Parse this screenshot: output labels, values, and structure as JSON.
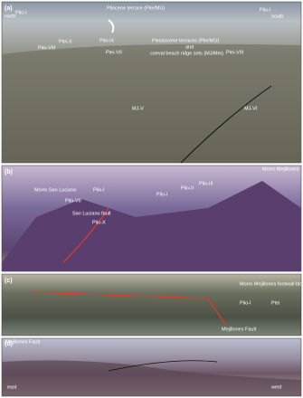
{
  "panels": [
    {
      "label": "(a)",
      "annotations": [
        "north",
        "south",
        "Pliocene terrace (Plei/MU)",
        "Plio-I",
        "Plio-I",
        "Plei-X",
        "Plei-VIII",
        "Plei-IX",
        "Plei-VII",
        "Pleistocene terraces (Plei/MU)",
        "and",
        "coeval beach ridge sets (MJ/Mm)",
        "Plei-VIII",
        "MJ-V",
        "MJ-VI"
      ]
    },
    {
      "label": "(b)",
      "annotations": [
        "Morro Mejillones",
        "Morro San Luciano",
        "Plio-I",
        "Plio-I",
        "Plio-II",
        "Plio-III",
        "Plio-VII",
        "San Luciano fault",
        "Plio-X"
      ]
    },
    {
      "label": "(c)",
      "annotations": [
        "Morro Mejillones footwall block",
        "Plio-I",
        "Plei",
        "Mejillones Fault"
      ]
    },
    {
      "label": "(d)",
      "annotations": [
        "Mejillones Fault",
        "east",
        "west"
      ]
    }
  ]
}
